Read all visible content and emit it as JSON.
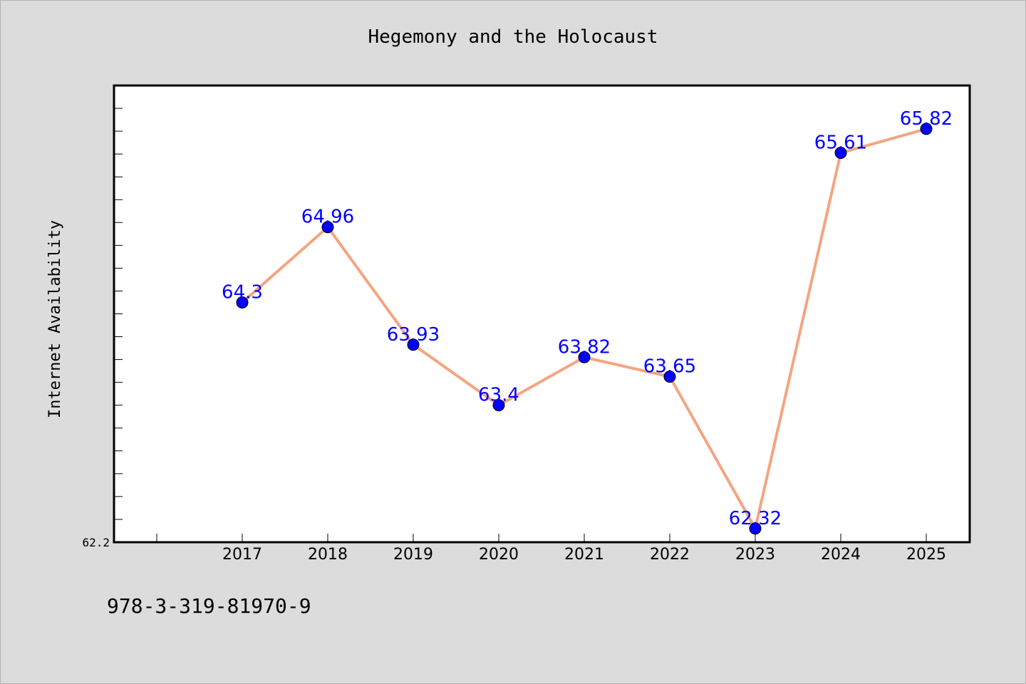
{
  "footer": {
    "isbn": "978-3-319-81970-9"
  },
  "chart_data": {
    "type": "line",
    "title": "Hegemony and the Holocaust",
    "xlabel": "",
    "ylabel": "Internet Availability",
    "categories": [
      "2017",
      "2018",
      "2019",
      "2020",
      "2021",
      "2022",
      "2023",
      "2024",
      "2025"
    ],
    "series": [
      {
        "values": [
          64.3,
          64.96,
          63.93,
          63.4,
          63.82,
          63.65,
          62.32,
          65.61,
          65.82
        ],
        "labels": [
          "64.3",
          "64.96",
          "63.93",
          "63.4",
          "63.82",
          "63.65",
          "62.32",
          "65.61",
          "65.82"
        ],
        "line_color": "#f4a582",
        "marker_color": "#0000ff",
        "label_color": "#0000ff"
      }
    ],
    "ylim": [
      62.2,
      66.2
    ],
    "yticks_labeled": [
      "62.2"
    ],
    "grid": false,
    "legend": "none",
    "colors": {
      "background": "#dcdcdc",
      "plot_background": "#ffffff"
    }
  }
}
